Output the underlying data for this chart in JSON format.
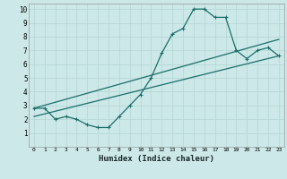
{
  "title": "",
  "xlabel": "Humidex (Indice chaleur)",
  "ylabel": "",
  "bg_color": "#cce8e8",
  "line_color": "#1a6e6a",
  "grid_color": "#b8d8d8",
  "xlim": [
    -0.5,
    23.5
  ],
  "ylim": [
    0,
    10.4
  ],
  "xticks": [
    0,
    1,
    2,
    3,
    4,
    5,
    6,
    7,
    8,
    9,
    10,
    11,
    12,
    13,
    14,
    15,
    16,
    17,
    18,
    19,
    20,
    21,
    22,
    23
  ],
  "yticks": [
    1,
    2,
    3,
    4,
    5,
    6,
    7,
    8,
    9,
    10
  ],
  "curve1_x": [
    0,
    1,
    2,
    3,
    4,
    5,
    6,
    7,
    8,
    9,
    10,
    11,
    12,
    13,
    14,
    15,
    16,
    17,
    18,
    19,
    20,
    21,
    22,
    23
  ],
  "curve1_y": [
    2.8,
    2.8,
    2.0,
    2.2,
    2.0,
    1.6,
    1.4,
    1.4,
    2.2,
    3.0,
    3.8,
    5.0,
    6.8,
    8.2,
    8.6,
    10.0,
    10.0,
    9.4,
    9.4,
    7.0,
    6.4,
    7.0,
    7.2,
    6.6
  ],
  "curve2_x": [
    0,
    23
  ],
  "curve2_y": [
    2.8,
    7.8
  ],
  "curve3_x": [
    0,
    23
  ],
  "curve3_y": [
    2.2,
    6.6
  ]
}
